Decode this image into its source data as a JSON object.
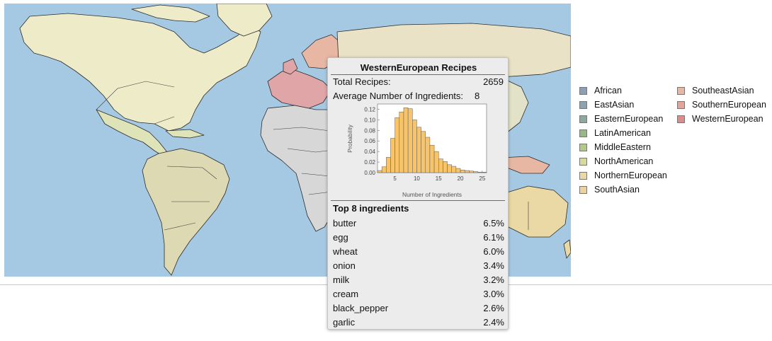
{
  "legend": {
    "items": [
      {
        "label": "African",
        "color": "#8e9fb5"
      },
      {
        "label": "EastAsian",
        "color": "#8fa2b0"
      },
      {
        "label": "EasternEuropean",
        "color": "#8ea7a1"
      },
      {
        "label": "LatinAmerican",
        "color": "#99b789"
      },
      {
        "label": "MiddleEastern",
        "color": "#b4c989"
      },
      {
        "label": "NorthAmerican",
        "color": "#d7db9a"
      },
      {
        "label": "NorthernEuropean",
        "color": "#ead9a4"
      },
      {
        "label": "SouthAsian",
        "color": "#ebd39b"
      },
      {
        "label": "SoutheastAsian",
        "color": "#e7b7a1"
      },
      {
        "label": "SouthernEuropean",
        "color": "#e3a599"
      },
      {
        "label": "WesternEuropean",
        "color": "#da8d8b"
      }
    ]
  },
  "tooltip": {
    "title": "WesternEuropean Recipes",
    "total_label": "Total Recipes:",
    "total_value": "2659",
    "avg_label": "Average Number of Ingredients:",
    "avg_value": "8",
    "top_title": "Top 8 ingredients",
    "ingredients": [
      {
        "name": "butter",
        "pct": "6.5%"
      },
      {
        "name": "egg",
        "pct": "6.1%"
      },
      {
        "name": "wheat",
        "pct": "6.0%"
      },
      {
        "name": "onion",
        "pct": "3.4%"
      },
      {
        "name": "milk",
        "pct": "3.2%"
      },
      {
        "name": "cream",
        "pct": "3.0%"
      },
      {
        "name": "black_pepper",
        "pct": "2.6%"
      },
      {
        "name": "garlic",
        "pct": "2.4%"
      }
    ]
  },
  "chart_data": {
    "type": "bar",
    "xlabel": "Number of Ingredients",
    "ylabel": "Probability",
    "xlim": [
      1,
      26
    ],
    "ylim": [
      0,
      0.13
    ],
    "xticks": [
      5,
      10,
      15,
      20,
      25
    ],
    "yticks": [
      "0.00",
      "0.02",
      "0.04",
      "0.06",
      "0.08",
      "0.10",
      "0.12"
    ],
    "bar_color": "#f7c46a",
    "x": [
      1,
      2,
      3,
      4,
      5,
      6,
      7,
      8,
      9,
      10,
      11,
      12,
      13,
      14,
      15,
      16,
      17,
      18,
      19,
      20,
      21,
      22,
      23,
      24,
      25
    ],
    "values": [
      0.004,
      0.011,
      0.029,
      0.065,
      0.104,
      0.115,
      0.123,
      0.121,
      0.1,
      0.086,
      0.078,
      0.067,
      0.052,
      0.04,
      0.026,
      0.021,
      0.015,
      0.012,
      0.008,
      0.005,
      0.004,
      0.003,
      0.002,
      0.001,
      0.001
    ]
  }
}
